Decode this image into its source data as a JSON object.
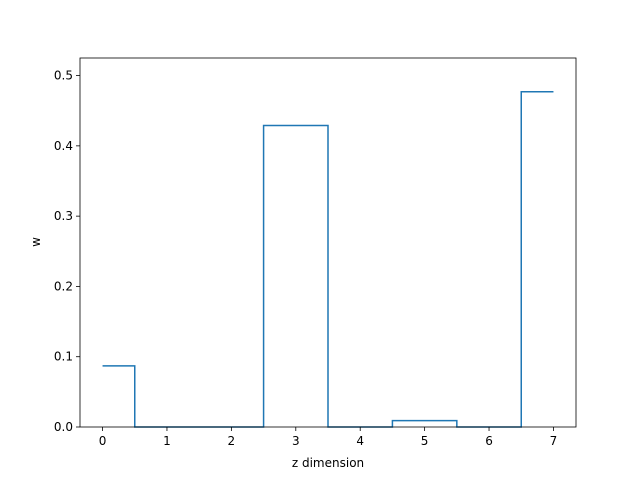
{
  "chart_data": {
    "type": "line",
    "style": "step-mid",
    "title": "",
    "xlabel": "z dimension",
    "ylabel": "w",
    "x": [
      0,
      1,
      2,
      3,
      4,
      5,
      6,
      7
    ],
    "series": [
      {
        "values": [
          0.087,
          0.0,
          0.0,
          0.429,
          0.0,
          0.009,
          0.0,
          0.477
        ],
        "color": "#1f77b4"
      }
    ],
    "xlim": [
      -0.35,
      7.35
    ],
    "ylim": [
      0,
      0.525
    ],
    "xticks": [
      "0",
      "1",
      "2",
      "3",
      "4",
      "5",
      "6",
      "7"
    ],
    "yticks": [
      "0.0",
      "0.1",
      "0.2",
      "0.3",
      "0.4",
      "0.5"
    ],
    "grid": false,
    "legend": "none"
  }
}
